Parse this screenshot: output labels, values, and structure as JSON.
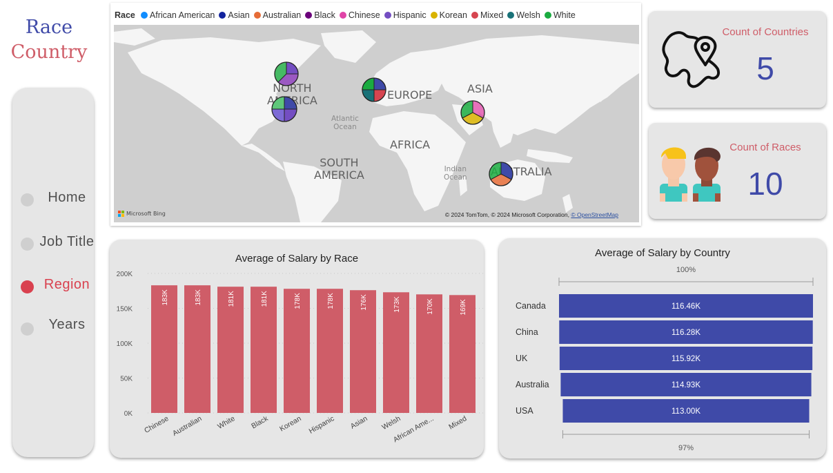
{
  "title": {
    "line1": "Race",
    "line2": "Country"
  },
  "nav": {
    "items": [
      {
        "label": "Home",
        "active": false
      },
      {
        "label": "Job Title",
        "active": false
      },
      {
        "label": "Region",
        "active": true
      },
      {
        "label": "Years",
        "active": false
      }
    ]
  },
  "map": {
    "legend_title": "Race",
    "legend": [
      {
        "name": "African American",
        "color": "#118DFF"
      },
      {
        "name": "Asian",
        "color": "#12239E"
      },
      {
        "name": "Australian",
        "color": "#E66C37"
      },
      {
        "name": "Black",
        "color": "#6B007B"
      },
      {
        "name": "Chinese",
        "color": "#E044A7"
      },
      {
        "name": "Hispanic",
        "color": "#744EC2"
      },
      {
        "name": "Korean",
        "color": "#D9B300"
      },
      {
        "name": "Mixed",
        "color": "#D64550"
      },
      {
        "name": "Welsh",
        "color": "#197278"
      },
      {
        "name": "White",
        "color": "#1AAB40"
      }
    ],
    "labels": {
      "north_america_1": "NORTH",
      "north_america_2": "AMERICA",
      "europe": "EUROPE",
      "asia": "ASIA",
      "africa": "AFRICA",
      "south_america_1": "SOUTH",
      "south_america_2": "AMERICA",
      "australia": "AUSTRALIA",
      "atlantic_1": "Atlantic",
      "atlantic_2": "Ocean",
      "indian_1": "Indian",
      "indian_2": "Ocean"
    },
    "attribution": "© 2024 TomTom, © 2024 Microsoft Corporation,",
    "attribution_link": "© OpenStreetMap",
    "bing": "Microsoft Bing"
  },
  "kpis": {
    "countries": {
      "label": "Count of Countries",
      "value": "5"
    },
    "races": {
      "label": "Count of Races",
      "value": "10"
    }
  },
  "colors": {
    "bar": "#cf5d68",
    "hbar": "#3f4aa8",
    "accent_red": "#cf5d68",
    "accent_blue": "#3f4aa8"
  },
  "chart_data": [
    {
      "type": "bar",
      "title": "Average of Salary by Race",
      "categories": [
        "Chinese",
        "Australian",
        "White",
        "Black",
        "Korean",
        "Hispanic",
        "Asian",
        "Welsh",
        "African Ame...",
        "Mixed"
      ],
      "values": [
        183000,
        183000,
        181000,
        181000,
        178000,
        178000,
        176000,
        173000,
        170000,
        169000
      ],
      "data_labels": [
        "183K",
        "183K",
        "181K",
        "181K",
        "178K",
        "178K",
        "176K",
        "173K",
        "170K",
        "169K"
      ],
      "yticks": [
        "0K",
        "50K",
        "100K",
        "150K",
        "200K"
      ],
      "ylim": [
        0,
        200000
      ]
    },
    {
      "type": "bar",
      "orientation": "horizontal",
      "title": "Average of Salary by Country",
      "categories": [
        "Canada",
        "China",
        "UK",
        "Australia",
        "USA"
      ],
      "values": [
        116460,
        116280,
        115920,
        114930,
        113000
      ],
      "data_labels": [
        "116.46K",
        "116.28K",
        "115.92K",
        "114.93K",
        "113.00K"
      ],
      "top_percent": "100%",
      "bottom_percent": "97%"
    }
  ]
}
